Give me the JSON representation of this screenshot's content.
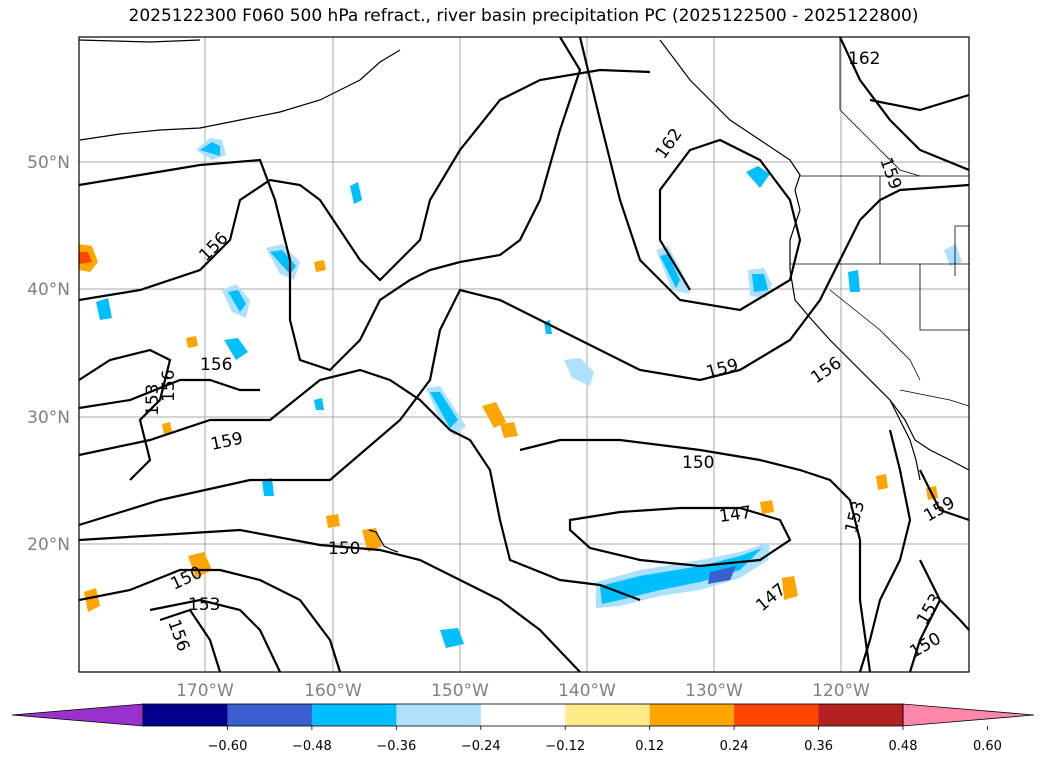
{
  "title": "2025122300 F060 500 hPa refract., river basin precipitation PC (2025122500 - 2025122800)",
  "map": {
    "lat_labels": [
      "50°N",
      "40°N",
      "30°N",
      "20°N"
    ],
    "lon_labels": [
      "170°W",
      "160°W",
      "150°W",
      "140°W",
      "130°W",
      "120°W"
    ],
    "contour_labels": [
      "162",
      "162",
      "159",
      "156",
      "156",
      "153",
      "156",
      "159",
      "159",
      "156",
      "150",
      "147",
      "150",
      "150",
      "153",
      "156",
      "153",
      "159",
      "147",
      "153",
      "150"
    ]
  },
  "colorbar": {
    "ticks": [
      "−0.60",
      "−0.48",
      "−0.36",
      "−0.24",
      "−0.12",
      "0.12",
      "0.24",
      "0.36",
      "0.48",
      "0.60"
    ],
    "colors": [
      "#9932cc",
      "#00008b",
      "#3b5fcf",
      "#00bfff",
      "#ade1ff",
      "#ffffff",
      "#ffeb8a",
      "#ffa500",
      "#ff4500",
      "#b22222",
      "#ff88aa"
    ]
  }
}
